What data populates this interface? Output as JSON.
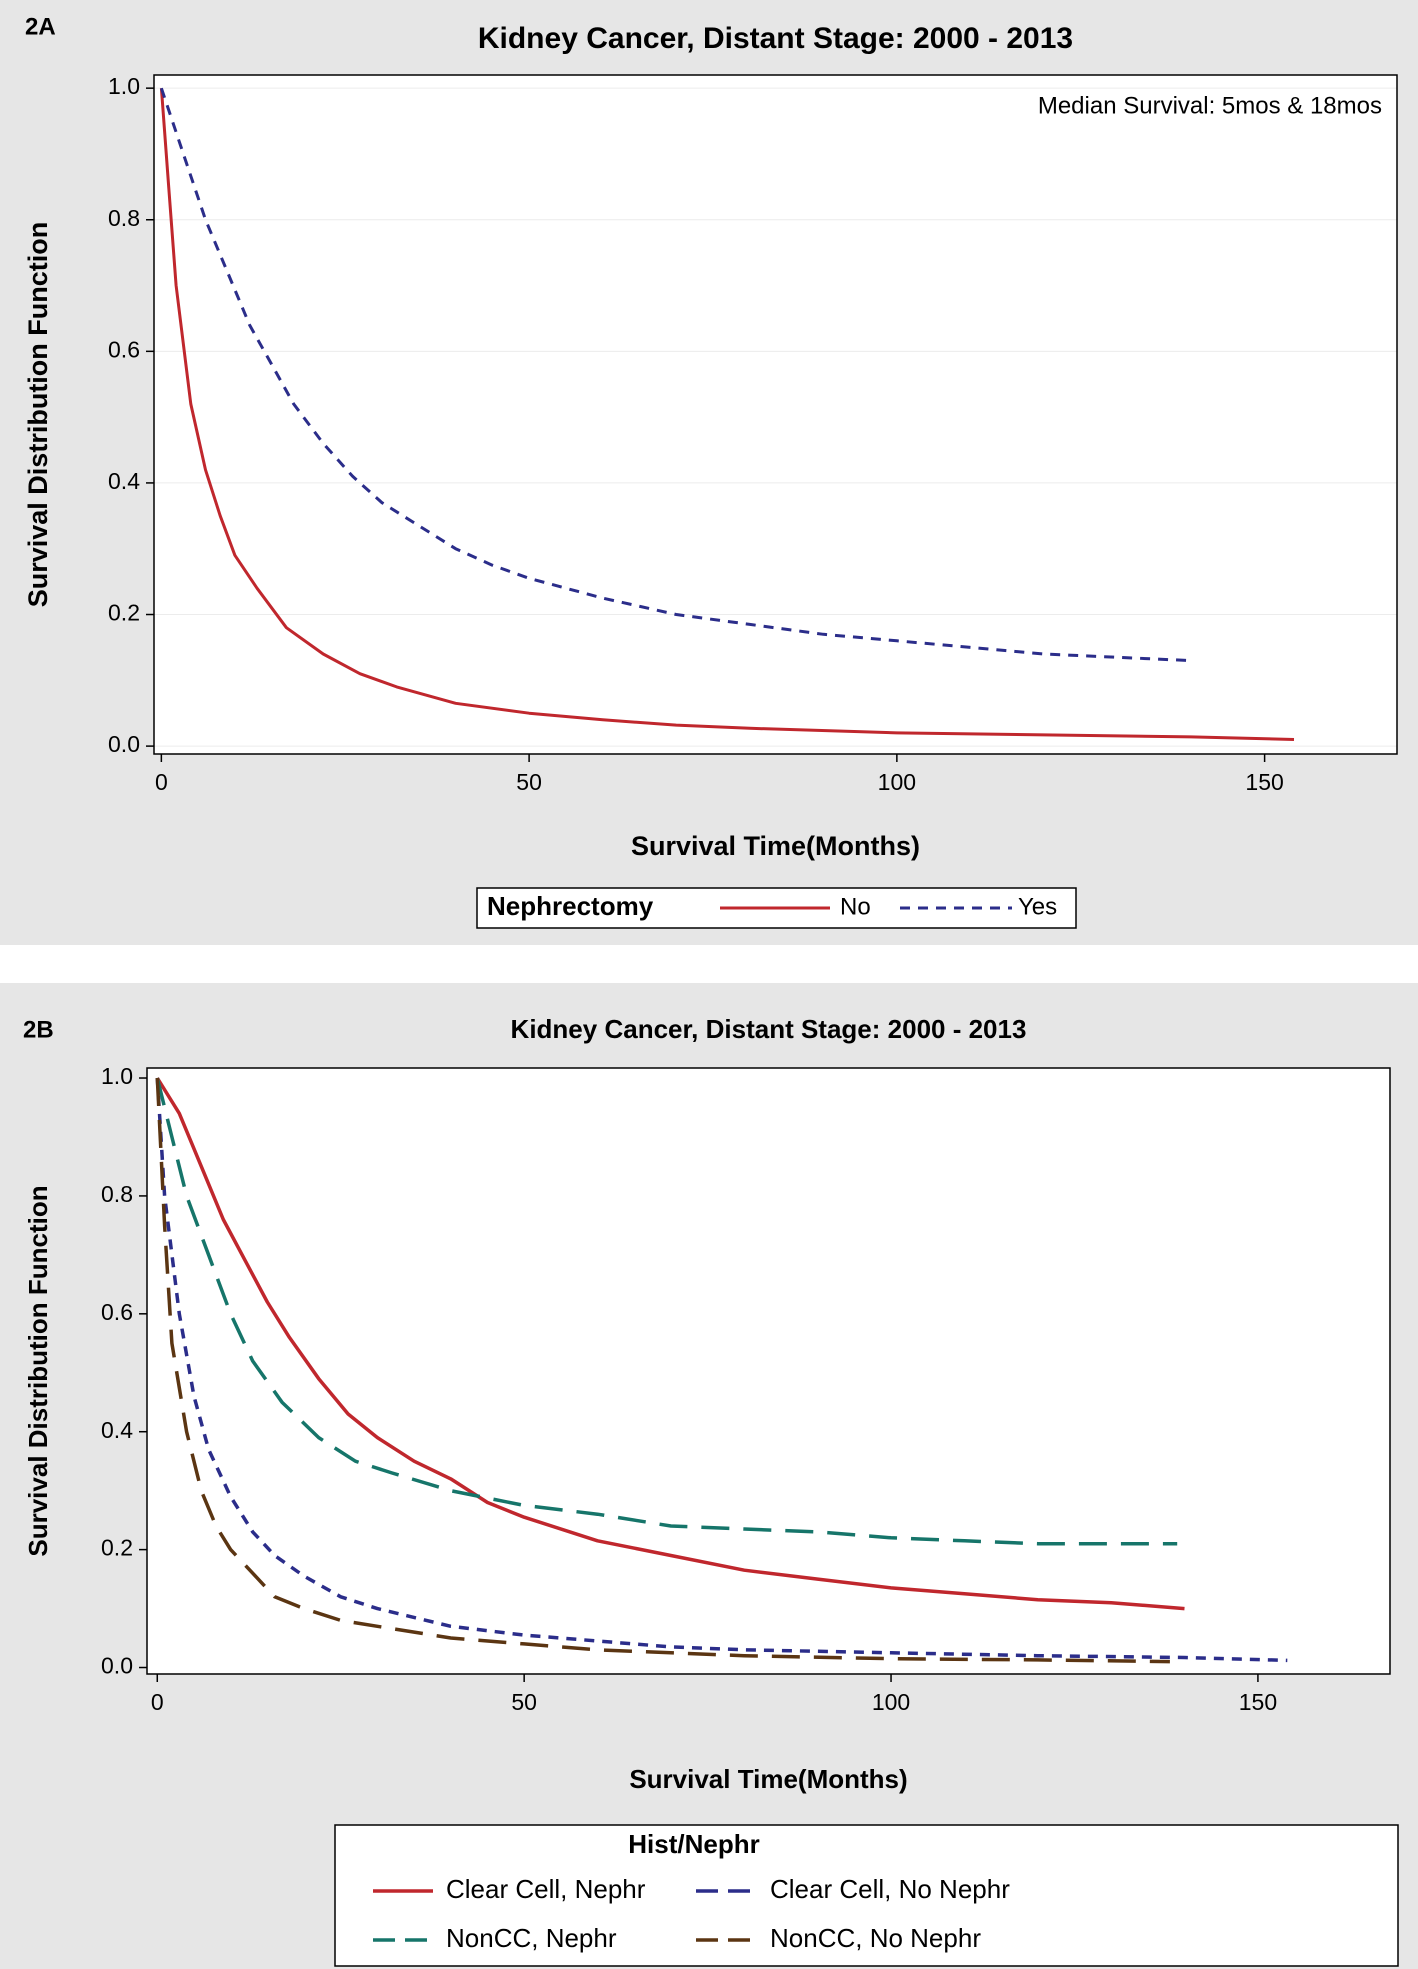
{
  "chart_data": [
    {
      "type": "line",
      "panel_label": "2A",
      "title": "Kidney Cancer, Distant Stage: 2000 - 2013",
      "xlabel": "Survival Time(Months)",
      "ylabel": "Survival Distribution Function",
      "annotation": "Median Survival: 5mos & 18mos",
      "legend_title": "Nephrectomy",
      "xlim": [
        -1,
        168
      ],
      "ylim": [
        -0.012,
        1.02
      ],
      "xticks": [
        0,
        50,
        100,
        150
      ],
      "yticks": [
        {
          "value": 0,
          "label": "0.0"
        },
        0.2,
        0.4,
        0.6,
        0.8,
        {
          "value": 1,
          "label": "1.0"
        }
      ],
      "grid": true,
      "series": [
        {
          "name": "No",
          "color": "#c0272d",
          "line_style": "solid",
          "x": [
            0,
            1,
            2,
            4,
            6,
            8,
            10,
            13,
            17,
            22,
            27,
            32,
            40,
            50,
            60,
            70,
            80,
            100,
            120,
            140,
            154
          ],
          "values": [
            1,
            0.85,
            0.7,
            0.52,
            0.42,
            0.35,
            0.29,
            0.24,
            0.18,
            0.14,
            0.11,
            0.09,
            0.065,
            0.05,
            0.04,
            0.032,
            0.027,
            0.02,
            0.017,
            0.014,
            0.01
          ]
        },
        {
          "name": "Yes",
          "color": "#2b2d8a",
          "line_style": "dashed",
          "x": [
            0,
            3,
            6,
            9,
            12,
            15,
            18,
            22,
            26,
            30,
            35,
            40,
            45,
            50,
            60,
            70,
            80,
            90,
            100,
            110,
            120,
            130,
            140
          ],
          "values": [
            1,
            0.9,
            0.8,
            0.72,
            0.64,
            0.58,
            0.52,
            0.46,
            0.41,
            0.37,
            0.335,
            0.3,
            0.275,
            0.255,
            0.225,
            0.2,
            0.185,
            0.17,
            0.16,
            0.15,
            0.14,
            0.135,
            0.13
          ]
        }
      ]
    },
    {
      "type": "line",
      "panel_label": "2B",
      "title": "Kidney Cancer, Distant Stage: 2000 - 2013",
      "xlabel": "Survival Time(Months)",
      "ylabel": "Survival Distribution Function",
      "legend_title": "Hist/Nephr",
      "xlim": [
        -1.4,
        168
      ],
      "ylim": [
        -0.011,
        1.017
      ],
      "xticks": [
        0,
        50,
        100,
        150
      ],
      "yticks": [
        {
          "value": 0,
          "label": "0.0"
        },
        0.2,
        0.4,
        0.6,
        0.8,
        {
          "value": 1,
          "label": "1.0"
        }
      ],
      "grid": false,
      "series": [
        {
          "name": "Clear Cell, Nephr",
          "color": "#c0272d",
          "line_style": "solid",
          "x": [
            0,
            3,
            6,
            9,
            12,
            15,
            18,
            22,
            26,
            30,
            35,
            40,
            45,
            50,
            60,
            70,
            80,
            90,
            100,
            110,
            120,
            130,
            140
          ],
          "values": [
            1,
            0.94,
            0.85,
            0.76,
            0.69,
            0.62,
            0.56,
            0.49,
            0.43,
            0.39,
            0.35,
            0.32,
            0.28,
            0.255,
            0.215,
            0.19,
            0.165,
            0.15,
            0.135,
            0.125,
            0.115,
            0.11,
            0.1
          ]
        },
        {
          "name": "Clear Cell, No Nephr",
          "color": "#2b2d8a",
          "line_style": "dashed",
          "x": [
            0,
            1,
            3,
            5,
            7,
            10,
            13,
            16,
            20,
            25,
            30,
            40,
            50,
            60,
            70,
            80,
            100,
            120,
            140,
            154
          ],
          "values": [
            1,
            0.8,
            0.6,
            0.46,
            0.37,
            0.29,
            0.23,
            0.19,
            0.155,
            0.12,
            0.1,
            0.07,
            0.055,
            0.045,
            0.035,
            0.03,
            0.025,
            0.02,
            0.017,
            0.012
          ]
        },
        {
          "name": "NonCC, Nephr",
          "color": "#16756a",
          "line_style": "long-dashed",
          "x": [
            0,
            2,
            4,
            7,
            10,
            13,
            17,
            22,
            27,
            32,
            40,
            50,
            60,
            70,
            80,
            90,
            100,
            110,
            120,
            130,
            139
          ],
          "values": [
            1,
            0.9,
            0.8,
            0.7,
            0.6,
            0.52,
            0.45,
            0.39,
            0.35,
            0.33,
            0.3,
            0.275,
            0.26,
            0.24,
            0.235,
            0.23,
            0.22,
            0.215,
            0.21,
            0.21,
            0.21
          ]
        },
        {
          "name": "NonCC, No Nephr",
          "color": "#5b3512",
          "line_style": "long-dashed",
          "x": [
            0,
            1,
            2,
            4,
            6,
            8,
            10,
            13,
            16,
            20,
            25,
            30,
            40,
            50,
            60,
            70,
            80,
            100,
            120,
            138
          ],
          "values": [
            1,
            0.75,
            0.55,
            0.4,
            0.3,
            0.24,
            0.2,
            0.16,
            0.12,
            0.1,
            0.08,
            0.07,
            0.05,
            0.04,
            0.03,
            0.025,
            0.02,
            0.015,
            0.013,
            0.01
          ]
        }
      ]
    }
  ]
}
